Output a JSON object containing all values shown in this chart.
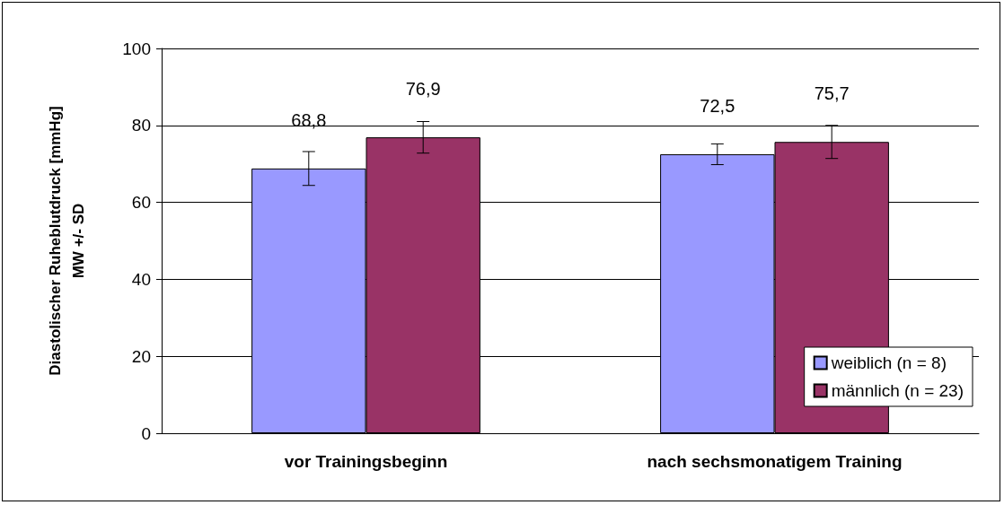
{
  "chart_data": {
    "type": "bar",
    "ylabel": "Diastolischer Ruheblutdruck [mmHg]\nMW +/- SD",
    "categories": [
      "vor Trainingsbeginn",
      "nach sechsmonatigem Training"
    ],
    "series": [
      {
        "name": "weiblich (n = 8)",
        "color": "#9999ff",
        "values": [
          68.8,
          72.5
        ],
        "errors": [
          4.4,
          2.7
        ]
      },
      {
        "name": "männlich (n = 23)",
        "color": "#993366",
        "values": [
          76.9,
          75.7
        ],
        "errors": [
          4.1,
          4.3
        ]
      }
    ],
    "value_labels": [
      [
        "68,8",
        "72,5"
      ],
      [
        "76,9",
        "75,7"
      ]
    ],
    "ylim": [
      0,
      100
    ],
    "yticks": [
      0,
      20,
      40,
      60,
      80,
      100
    ],
    "grid": "y",
    "legend": "bottom right"
  }
}
